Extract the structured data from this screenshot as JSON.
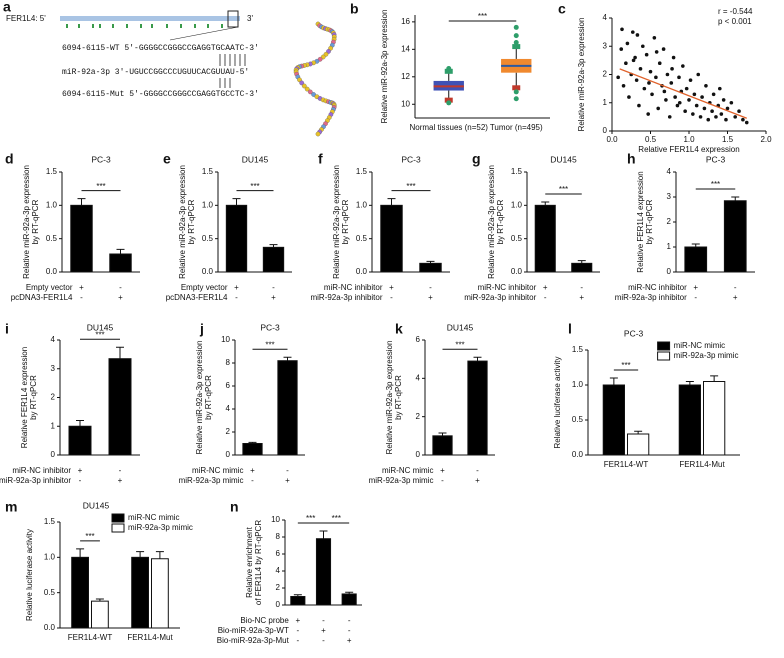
{
  "panel_a": {
    "label": "a",
    "gene": "FER1L4: 5'",
    "gene_end": "3'",
    "sequences": [
      "6094-6115-WT 5'-GGGGCCGGGCCGAGGTGCAATC-3'",
      "miR-92a-3p 3'-UGUCCGGCCCUGUUCACGUUAU-5'",
      "6094-6115-Mut 5'-GGGGCCGGGCCGAGGTGCCTC-3'"
    ]
  },
  "chart_data": [
    {
      "type": "box",
      "label": "b",
      "ylabel": "Relative miR-92a-3p expression",
      "categories": [
        "Normal tissues (n=52)",
        "Tumor (n=495)"
      ],
      "boxes": [
        {
          "whislo": 10.3,
          "q1": 11.0,
          "med": 11.3,
          "q3": 11.7,
          "whishi": 12.4,
          "fliers": [
            10.1,
            12.6
          ]
        },
        {
          "whislo": 11.2,
          "q1": 12.3,
          "med": 12.8,
          "q3": 13.3,
          "whishi": 14.2,
          "fliers": [
            10.4,
            10.9,
            14.5,
            15.0,
            15.6
          ]
        }
      ],
      "box_colors": [
        "#3f51b5",
        "#f0892e"
      ],
      "median_colors": [
        "#c0392b",
        "#2c5aa0"
      ],
      "flier_color": "#2e9e6a",
      "ylim": [
        9,
        16.5
      ],
      "yticks": [
        10,
        12,
        14,
        16
      ],
      "significance": [
        "***"
      ]
    },
    {
      "type": "scatter",
      "label": "c",
      "ylabel": "Relative miR-92a-3p expression",
      "xlabel": "Relative FER1L4 expression",
      "annotations": [
        "r = -0.544",
        "p < 0.001"
      ],
      "color": "#111111",
      "fit_color": "#e0612a",
      "x": [
        0.12,
        0.15,
        0.18,
        0.2,
        0.22,
        0.25,
        0.27,
        0.3,
        0.32,
        0.35,
        0.37,
        0.4,
        0.42,
        0.45,
        0.47,
        0.5,
        0.52,
        0.55,
        0.57,
        0.6,
        0.62,
        0.65,
        0.67,
        0.7,
        0.72,
        0.75,
        0.77,
        0.8,
        0.82,
        0.85,
        0.87,
        0.9,
        0.92,
        0.95,
        0.97,
        1.0,
        1.02,
        1.05,
        1.07,
        1.1,
        1.12,
        1.15,
        1.17,
        1.2,
        1.22,
        1.25,
        1.27,
        1.3,
        1.32,
        1.35,
        1.38,
        1.4,
        1.42,
        1.45,
        1.48,
        1.5,
        1.55,
        1.6,
        1.65,
        1.7,
        1.75,
        0.08,
        0.28,
        0.48,
        0.68,
        0.88,
        0.13,
        0.33,
        0.58,
        0.78
      ],
      "y": [
        2.9,
        1.6,
        2.4,
        3.1,
        1.2,
        2.0,
        3.5,
        2.6,
        1.8,
        0.9,
        2.2,
        3.0,
        1.5,
        2.7,
        0.6,
        2.1,
        1.3,
        3.3,
        1.9,
        0.8,
        2.4,
        1.6,
        2.9,
        1.1,
        2.0,
        0.5,
        1.7,
        2.6,
        1.2,
        0.9,
        1.9,
        1.4,
        2.3,
        0.7,
        1.5,
        1.1,
        1.8,
        0.6,
        1.3,
        0.9,
        2.0,
        0.5,
        1.2,
        0.8,
        1.6,
        0.4,
        1.0,
        0.7,
        1.3,
        0.5,
        0.9,
        1.5,
        0.6,
        1.1,
        0.4,
        0.8,
        1.0,
        0.5,
        0.7,
        0.4,
        0.3,
        1.9,
        2.5,
        1.7,
        1.4,
        1.0,
        3.6,
        3.4,
        2.8,
        2.2
      ],
      "fit": {
        "x": [
          0.1,
          1.75
        ],
        "y": [
          2.2,
          0.45
        ]
      },
      "xlim": [
        0,
        2
      ],
      "xticks": [
        {
          "value": 0,
          "label": "0.0"
        },
        0.5,
        {
          "value": 1,
          "label": "1.0"
        },
        1.5,
        {
          "value": 2,
          "label": "2.0"
        }
      ],
      "ylim": [
        0,
        4
      ],
      "yticks": [
        0,
        1,
        2,
        3,
        4
      ]
    },
    {
      "type": "bar",
      "label": "d",
      "title": "PC-3",
      "ylabel": [
        "Relative miR-92a-3p expression",
        "by RT-qPCR"
      ],
      "values": [
        1.0,
        0.27
      ],
      "errors": [
        0.1,
        0.07
      ],
      "color": "#000000",
      "rows": [
        {
          "name": "Empty vector",
          "signs": [
            "+",
            "-"
          ]
        },
        {
          "name": "pcDNA3-FER1L4",
          "signs": [
            "-",
            "+"
          ]
        }
      ],
      "ylim": [
        0,
        1.5
      ],
      "yticks": [
        {
          "value": 0,
          "label": "0.0"
        },
        0.5,
        {
          "value": 1,
          "label": "1.0"
        },
        1.5
      ],
      "significance": [
        "***"
      ]
    },
    {
      "type": "bar",
      "label": "e",
      "title": "DU145",
      "ylabel": [
        "Relative miR-92a-3p expression",
        "by RT-qPCR"
      ],
      "values": [
        1.0,
        0.37
      ],
      "errors": [
        0.1,
        0.04
      ],
      "color": "#000000",
      "rows": [
        {
          "name": "Empty vector",
          "signs": [
            "+",
            "-"
          ]
        },
        {
          "name": "pcDNA3-FER1L4",
          "signs": [
            "-",
            "+"
          ]
        }
      ],
      "ylim": [
        0,
        1.5
      ],
      "yticks": [
        {
          "value": 0,
          "label": "0.0"
        },
        0.5,
        {
          "value": 1,
          "label": "1.0"
        },
        1.5
      ],
      "significance": [
        "***"
      ]
    },
    {
      "type": "bar",
      "label": "f",
      "title": "PC-3",
      "ylabel": [
        "Relative miR-92a-3p expression",
        "by RT-qPCR"
      ],
      "values": [
        1.0,
        0.13
      ],
      "errors": [
        0.1,
        0.03
      ],
      "color": "#000000",
      "rows": [
        {
          "name": "miR-NC inhibitor",
          "signs": [
            "+",
            "-"
          ]
        },
        {
          "name": "miR-92a-3p inhibitor",
          "signs": [
            "-",
            "+"
          ]
        }
      ],
      "ylim": [
        0,
        1.5
      ],
      "yticks": [
        {
          "value": 0,
          "label": "0.0"
        },
        0.5,
        {
          "value": 1,
          "label": "1.0"
        },
        1.5
      ],
      "significance": [
        "***"
      ]
    },
    {
      "type": "bar",
      "label": "g",
      "title": "DU145",
      "ylabel": [
        "Relative miR-92a-3p expression",
        "by RT-qPCR"
      ],
      "values": [
        1.0,
        0.13
      ],
      "errors": [
        0.05,
        0.04
      ],
      "color": "#000000",
      "rows": [
        {
          "name": "miR-NC inhibitor",
          "signs": [
            "+",
            "-"
          ]
        },
        {
          "name": "miR-92a-3p inhibitor",
          "signs": [
            "-",
            "+"
          ]
        }
      ],
      "ylim": [
        0,
        1.5
      ],
      "yticks": [
        {
          "value": 0,
          "label": "0.0"
        },
        0.5,
        {
          "value": 1,
          "label": "1.0"
        },
        1.5
      ],
      "significance": [
        "***"
      ]
    },
    {
      "type": "bar",
      "label": "h",
      "title": "PC-3",
      "ylabel": [
        "Relative FER1L4 expression",
        "by RT-qPCR"
      ],
      "values": [
        1.0,
        2.85
      ],
      "errors": [
        0.12,
        0.15
      ],
      "color": "#000000",
      "rows": [
        {
          "name": "miR-NC inhibitor",
          "signs": [
            "+",
            "-"
          ]
        },
        {
          "name": "miR-92a-3p inhibitor",
          "signs": [
            "-",
            "+"
          ]
        }
      ],
      "ylim": [
        0,
        4
      ],
      "yticks": [
        0,
        1,
        2,
        3,
        4
      ],
      "significance": [
        "***"
      ]
    },
    {
      "type": "bar",
      "label": "i",
      "title": "DU145",
      "ylabel": [
        "Relative FER1L4 expression",
        "by RT-qPCR"
      ],
      "values": [
        1.0,
        3.35
      ],
      "errors": [
        0.2,
        0.4
      ],
      "color": "#000000",
      "rows": [
        {
          "name": "miR-NC inhibitor",
          "signs": [
            "+",
            "-"
          ]
        },
        {
          "name": "miR-92a-3p inhibitor",
          "signs": [
            "-",
            "+"
          ]
        }
      ],
      "ylim": [
        0,
        4
      ],
      "yticks": [
        0,
        1,
        2,
        3,
        4
      ],
      "significance": [
        "***"
      ]
    },
    {
      "type": "bar",
      "label": "j",
      "title": "PC-3",
      "ylabel": [
        "Relative miR-92a-3p expression",
        "by RT-qPCR"
      ],
      "values": [
        1.0,
        8.2
      ],
      "errors": [
        0.1,
        0.3
      ],
      "color": "#000000",
      "rows": [
        {
          "name": "miR-NC mimic",
          "signs": [
            "+",
            "-"
          ]
        },
        {
          "name": "miR-92a-3p mimic",
          "signs": [
            "-",
            "+"
          ]
        }
      ],
      "ylim": [
        0,
        10
      ],
      "yticks": [
        0,
        2,
        4,
        6,
        8,
        10
      ],
      "significance": [
        "***"
      ]
    },
    {
      "type": "bar",
      "label": "k",
      "title": "DU145",
      "ylabel": [
        "Relative miR-92a-3p expression",
        "by RT-qPCR"
      ],
      "values": [
        1.0,
        4.9
      ],
      "errors": [
        0.15,
        0.2
      ],
      "color": "#000000",
      "rows": [
        {
          "name": "miR-NC mimic",
          "signs": [
            "+",
            "-"
          ]
        },
        {
          "name": "miR-92a-3p mimic",
          "signs": [
            "-",
            "+"
          ]
        }
      ],
      "ylim": [
        0,
        6
      ],
      "yticks": [
        0,
        2,
        4,
        6
      ],
      "significance": [
        "***"
      ]
    },
    {
      "type": "grouped_bar",
      "label": "l",
      "title": "PC-3",
      "ylabel": "Relative luciferase activity",
      "categories": [
        "FER1L4-WT",
        "FER1L4-Mut"
      ],
      "series": [
        {
          "name": "miR-NC mimic",
          "color": "#000000",
          "values": [
            1.0,
            1.0
          ],
          "errors": [
            0.1,
            0.05
          ]
        },
        {
          "name": "miR-92a-3p mimic",
          "color": "#ffffff",
          "values": [
            0.3,
            1.05
          ],
          "errors": [
            0.04,
            0.08
          ]
        }
      ],
      "ylim": [
        0,
        1.5
      ],
      "yticks": [
        {
          "value": 0,
          "label": "0.0"
        },
        0.5,
        {
          "value": 1,
          "label": "1.0"
        },
        1.5
      ],
      "significance": [
        "***"
      ],
      "legend": "upper right"
    },
    {
      "type": "grouped_bar",
      "label": "m",
      "title": "DU145",
      "ylabel": "Relative luciferase activity",
      "categories": [
        "FER1L4-WT",
        "FER1L4-Mut"
      ],
      "series": [
        {
          "name": "miR-NC mimic",
          "color": "#000000",
          "values": [
            1.0,
            1.0
          ],
          "errors": [
            0.12,
            0.08
          ]
        },
        {
          "name": "miR-92a-3p mimic",
          "color": "#ffffff",
          "values": [
            0.38,
            0.98
          ],
          "errors": [
            0.03,
            0.1
          ]
        }
      ],
      "ylim": [
        0,
        1.5
      ],
      "yticks": [
        {
          "value": 0,
          "label": "0.0"
        },
        0.5,
        {
          "value": 1,
          "label": "1.0"
        },
        1.5
      ],
      "significance": [
        "***"
      ],
      "legend": "upper right"
    },
    {
      "type": "bar",
      "label": "n",
      "ylabel": [
        "Relative enrichment",
        "of FER1L4 by RT-qPCR"
      ],
      "values": [
        1.0,
        7.8,
        1.3
      ],
      "errors": [
        0.2,
        0.9,
        0.2
      ],
      "color": "#000000",
      "rows": [
        {
          "name": "Bio-NC probe",
          "signs": [
            "+",
            "-",
            "-"
          ]
        },
        {
          "name": "Bio-miR-92a-3p-WT",
          "signs": [
            "-",
            "+",
            "-"
          ]
        },
        {
          "name": "Bio-miR-92a-3p-Mut",
          "signs": [
            "-",
            "-",
            "+"
          ]
        }
      ],
      "ylim": [
        0,
        10
      ],
      "yticks": [
        0,
        2,
        4,
        6,
        8,
        10
      ],
      "significance": [
        "***",
        "***"
      ]
    }
  ]
}
